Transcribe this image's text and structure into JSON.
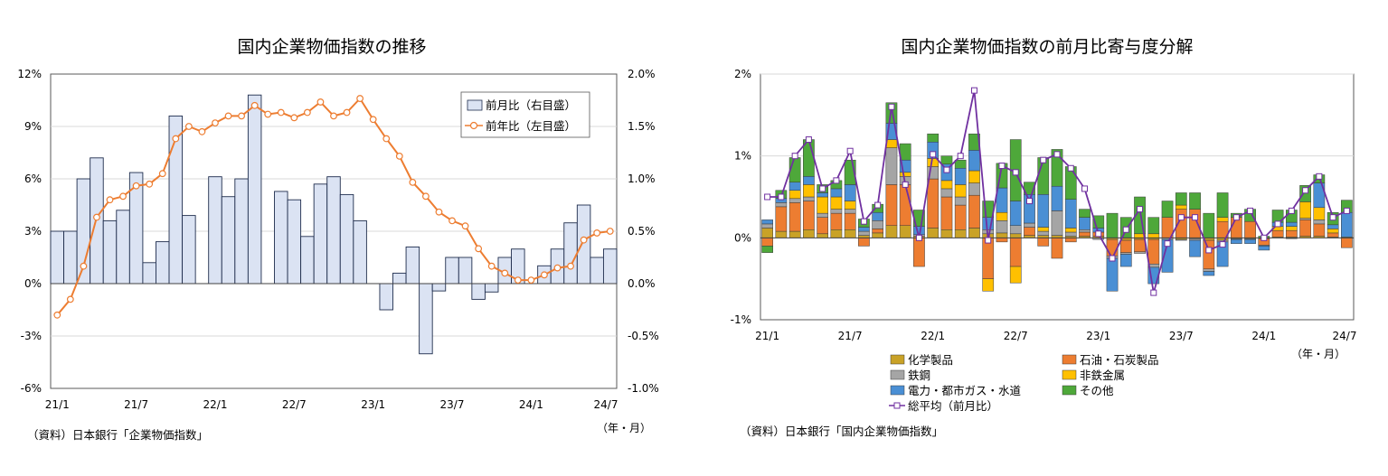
{
  "chart_data": [
    {
      "type": "bar",
      "title": "国内企業物価指数の推移",
      "x_ticks": [
        "21/1",
        "21/7",
        "22/1",
        "22/7",
        "23/1",
        "23/7",
        "24/1",
        "24/7"
      ],
      "x_unit_label": "（年・月）",
      "y_left_ticks": [
        "12%",
        "9%",
        "6%",
        "3%",
        "0%",
        "-3%",
        "-6%"
      ],
      "y_right_ticks": [
        "2.0%",
        "1.5%",
        "1.0%",
        "0.5%",
        "0.0%",
        "-0.5%",
        "-1.0%"
      ],
      "ylim_left": [
        -6,
        12
      ],
      "ylim_right": [
        -1.0,
        2.0
      ],
      "grid": true,
      "legend_position": "top-right",
      "series": [
        {
          "name": "前月比（右目盛）",
          "type": "bar",
          "axis": "right",
          "color": "#dbe3f3",
          "values": [
            0.5,
            0.5,
            1.0,
            1.2,
            0.6,
            0.7,
            1.06,
            0.2,
            0.4,
            1.6,
            0.65,
            null,
            1.02,
            0.83,
            1.0,
            1.8,
            null,
            0.88,
            0.8,
            0.45,
            0.95,
            1.02,
            0.85,
            0.6,
            null,
            -0.25,
            0.1,
            0.35,
            -0.67,
            -0.07,
            0.25,
            0.25,
            -0.15,
            -0.08,
            0.25,
            0.33,
            null,
            0.17,
            0.33,
            0.58,
            0.75,
            0.25,
            0.33
          ]
        },
        {
          "name": "前年比（左目盛）",
          "type": "line",
          "axis": "left",
          "color": "#ed7d31",
          "values": [
            -1.8,
            -0.9,
            1.0,
            3.8,
            4.8,
            5.0,
            5.6,
            5.7,
            6.3,
            8.3,
            9.0,
            8.7,
            9.2,
            9.6,
            9.6,
            10.2,
            9.7,
            9.8,
            9.5,
            9.8,
            10.4,
            9.6,
            9.8,
            10.6,
            9.4,
            8.3,
            7.3,
            5.8,
            5.0,
            4.1,
            3.6,
            3.3,
            2.0,
            1.0,
            0.6,
            0.2,
            0.2,
            0.5,
            0.9,
            1.0,
            2.5,
            2.9,
            3.0
          ]
        }
      ]
    },
    {
      "type": "bar",
      "title": "国内企業物価指数の前月比寄与度分解",
      "x_ticks": [
        "21/1",
        "21/7",
        "22/1",
        "22/7",
        "23/1",
        "23/7",
        "24/1",
        "24/7"
      ],
      "x_unit_label": "（年・月）",
      "y_ticks": [
        "2%",
        "1%",
        "0%",
        "-1%"
      ],
      "ylim": [
        -1,
        2
      ],
      "grid": true,
      "stacked": true,
      "legend_position": "bottom",
      "series": [
        {
          "name": "化学製品",
          "color": "#c9a227",
          "values": [
            0.12,
            0.08,
            0.08,
            0.1,
            0.05,
            0.1,
            0.1,
            0.03,
            0.06,
            0.15,
            0.15,
            0.02,
            0.12,
            0.1,
            0.1,
            0.12,
            0.05,
            0.06,
            0.05,
            0.03,
            0.03,
            0.03,
            0.02,
            0.02,
            0.02,
            -0.02,
            -0.03,
            -0.02,
            -0.02,
            0.0,
            -0.02,
            -0.01,
            -0.03,
            -0.03,
            -0.01,
            -0.01,
            -0.01,
            0.01,
            0.01,
            0.02,
            0.02,
            0.01,
            0.01
          ]
        },
        {
          "name": "石油・石炭製品",
          "color": "#ed7d31",
          "values": [
            -0.1,
            0.3,
            0.35,
            0.35,
            0.2,
            0.2,
            0.2,
            -0.1,
            0.05,
            0.5,
            0.5,
            -0.35,
            0.6,
            0.4,
            0.3,
            0.4,
            -0.5,
            -0.05,
            -0.35,
            0.1,
            -0.1,
            -0.25,
            -0.05,
            0.05,
            0.05,
            -0.2,
            -0.15,
            -0.15,
            -0.3,
            0.25,
            0.35,
            0.35,
            -0.35,
            0.2,
            0.25,
            0.2,
            -0.08,
            0.08,
            0.08,
            0.2,
            0.15,
            0.05,
            -0.12
          ]
        },
        {
          "name": "鉄鋼",
          "color": "#a5a5a5",
          "values": [
            0.05,
            0.05,
            0.05,
            0.05,
            0.05,
            0.05,
            0.05,
            0.05,
            0.1,
            0.45,
            0.1,
            0.02,
            0.15,
            0.1,
            0.1,
            0.15,
            0.05,
            0.15,
            0.1,
            0.05,
            0.05,
            0.3,
            0.05,
            0.03,
            -0.02,
            -0.03,
            -0.02,
            -0.02,
            -0.04,
            -0.02,
            -0.01,
            -0.02,
            -0.03,
            -0.02,
            -0.01,
            -0.01,
            -0.01,
            0.0,
            -0.01,
            0.02,
            0.05,
            0.0,
            0.0
          ]
        },
        {
          "name": "非鉄金属",
          "color": "#ffc000",
          "values": [
            0.0,
            0.0,
            0.1,
            0.15,
            0.2,
            0.15,
            0.1,
            0.0,
            0.0,
            0.1,
            0.05,
            0.0,
            0.1,
            0.1,
            0.15,
            0.15,
            -0.15,
            0.1,
            -0.2,
            0.0,
            0.05,
            0.0,
            0.05,
            0.0,
            0.0,
            0.0,
            0.0,
            0.05,
            0.05,
            0.0,
            0.05,
            0.0,
            0.0,
            0.05,
            0.0,
            0.0,
            0.0,
            0.05,
            0.05,
            0.2,
            0.15,
            0.05,
            0.0
          ]
        },
        {
          "name": "電力・都市ガス・水道",
          "color": "#4a8fd4",
          "values": [
            0.05,
            0.05,
            0.1,
            0.1,
            0.05,
            0.1,
            0.2,
            0.05,
            0.1,
            0.2,
            0.15,
            0.1,
            0.2,
            0.2,
            0.2,
            0.25,
            0.15,
            0.3,
            0.3,
            0.35,
            0.4,
            0.3,
            0.35,
            0.15,
            0.05,
            -0.4,
            -0.15,
            0.0,
            -0.2,
            -0.4,
            0.0,
            -0.2,
            -0.05,
            -0.3,
            -0.05,
            -0.05,
            -0.05,
            0.05,
            0.05,
            0.0,
            0.3,
            0.05,
            0.3
          ]
        },
        {
          "name": "その他",
          "color": "#4ea83a",
          "values": [
            -0.08,
            0.1,
            0.3,
            0.45,
            0.1,
            0.1,
            0.3,
            0.1,
            0.1,
            0.25,
            0.2,
            0.2,
            0.1,
            0.1,
            0.1,
            0.2,
            0.2,
            0.3,
            0.75,
            0.15,
            0.45,
            0.45,
            0.4,
            0.1,
            0.15,
            0.3,
            0.25,
            0.45,
            0.2,
            0.2,
            0.15,
            0.2,
            0.3,
            0.3,
            0.05,
            0.15,
            0.02,
            0.15,
            0.15,
            0.2,
            0.1,
            0.15,
            0.15
          ]
        },
        {
          "name": "総平均（前月比）",
          "type": "line",
          "color": "#7030a0",
          "values": [
            0.5,
            0.5,
            1.0,
            1.2,
            0.6,
            0.7,
            1.06,
            0.2,
            0.4,
            1.6,
            0.65,
            0.0,
            1.02,
            0.83,
            1.0,
            1.8,
            -0.03,
            0.88,
            0.8,
            0.45,
            0.95,
            1.02,
            0.85,
            0.6,
            0.05,
            -0.25,
            0.1,
            0.35,
            -0.67,
            -0.07,
            0.25,
            0.25,
            -0.15,
            -0.08,
            0.25,
            0.33,
            0.0,
            0.17,
            0.33,
            0.58,
            0.75,
            0.25,
            0.33
          ]
        }
      ]
    }
  ],
  "sources": {
    "chart1": "（資料）日本銀行「企業物価指数」",
    "chart2": "（資料）日本銀行「国内企業物価指数」"
  }
}
